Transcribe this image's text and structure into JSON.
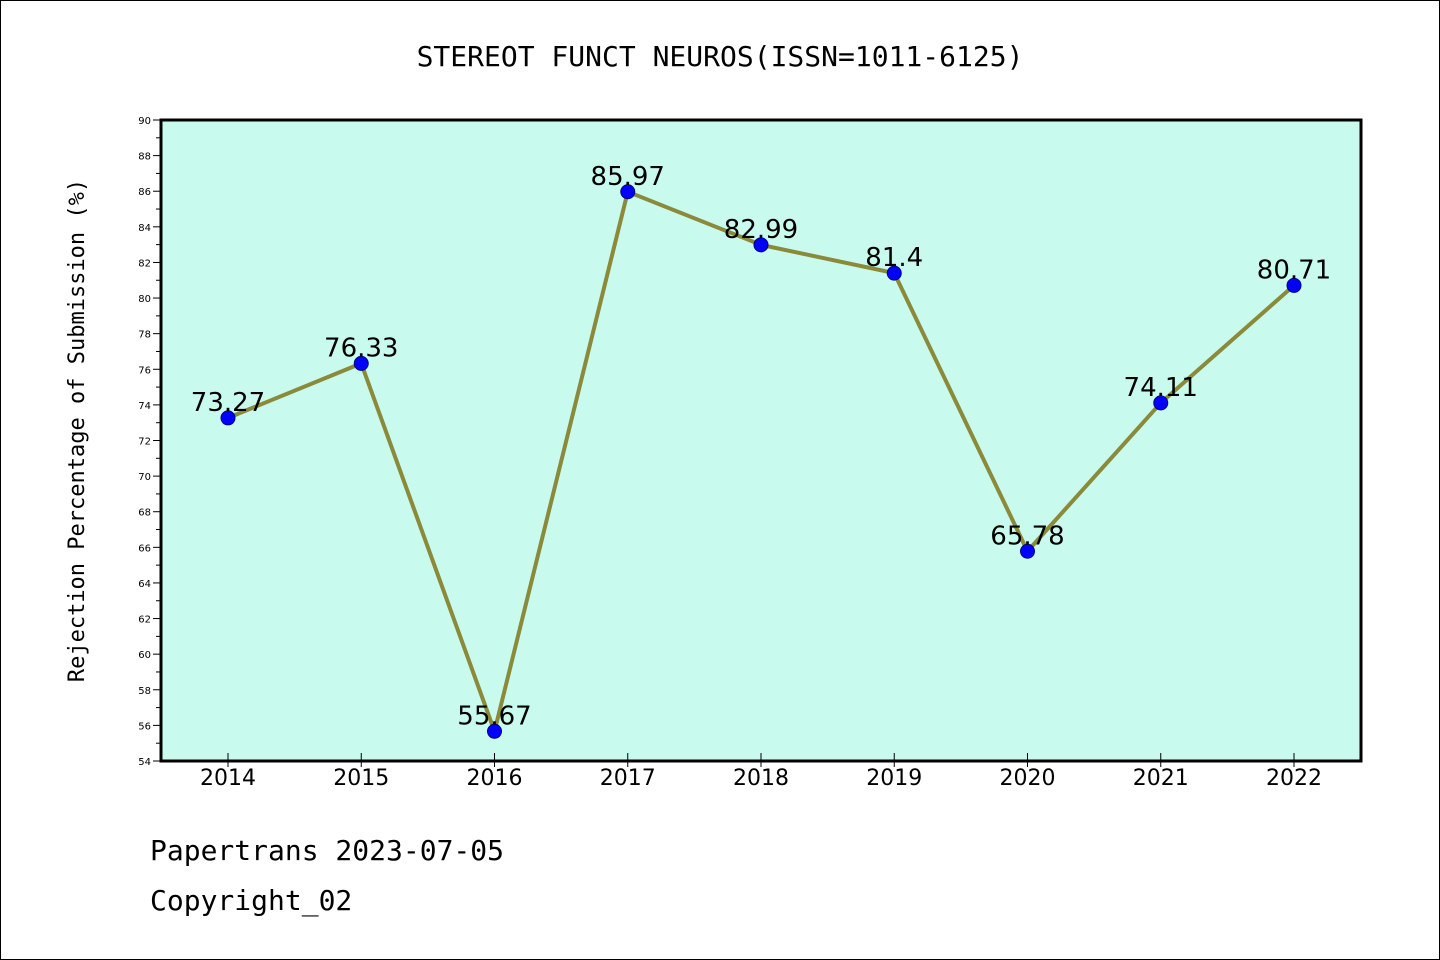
{
  "footer": {
    "line1": "Papertrans 2023-07-05",
    "line2": "Copyright_02"
  },
  "colors": {
    "plot_background": "#c8fbee",
    "line": "#8b8a3a",
    "marker_fill": "#0000ff",
    "marker_edge": "#000080",
    "axis": "#000000"
  },
  "chart_data": {
    "type": "line",
    "title": "STEREOT FUNCT NEUROS(ISSN=1011-6125)",
    "xlabel": "",
    "ylabel": "Rejection Percentage of Submission (%)",
    "categories": [
      "2014",
      "2015",
      "2016",
      "2017",
      "2018",
      "2019",
      "2020",
      "2021",
      "2022"
    ],
    "series": [
      {
        "values": [
          73.27,
          76.33,
          55.67,
          85.97,
          82.99,
          81.4,
          65.78,
          74.11,
          80.71
        ],
        "labels": [
          "73.27",
          "76.33",
          "55.67",
          "85.97",
          "82.99",
          "81.4",
          "65.78",
          "74.11",
          "80.71"
        ]
      }
    ],
    "ylim": [
      54,
      90
    ],
    "yticks": [
      54,
      56,
      58,
      60,
      62,
      64,
      66,
      68,
      70,
      72,
      74,
      76,
      78,
      80,
      82,
      84,
      86,
      88,
      90
    ],
    "grid": false,
    "legend": "none"
  }
}
